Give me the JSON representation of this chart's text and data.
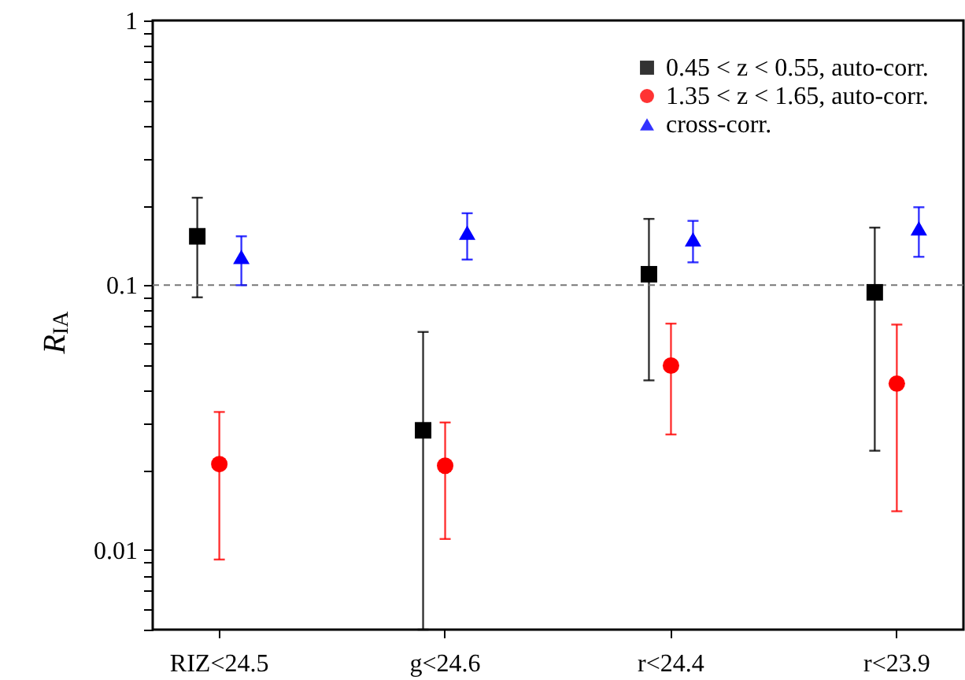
{
  "chart_data": {
    "type": "scatter",
    "ylabel": "R$_{IA}$",
    "log": "y",
    "categories": [
      "RIZ<24.5",
      "g<24.6",
      "r<24.4",
      "r<23.9"
    ],
    "ylim": [
      0.005,
      1
    ],
    "yticks": [
      {
        "value": 0.005,
        "label": null
      },
      {
        "value": 0.006,
        "label": null
      },
      {
        "value": 0.007,
        "label": null
      },
      {
        "value": 0.008,
        "label": null
      },
      {
        "value": 0.009,
        "label": null
      },
      0.01,
      {
        "value": 0.02,
        "label": null
      },
      {
        "value": 0.03,
        "label": null
      },
      {
        "value": 0.04,
        "label": null
      },
      {
        "value": 0.05,
        "label": null
      },
      {
        "value": 0.06,
        "label": null
      },
      {
        "value": 0.07,
        "label": null
      },
      {
        "value": 0.08,
        "label": null
      },
      {
        "value": 0.09,
        "label": null
      },
      0.1,
      {
        "value": 0.2,
        "label": null
      },
      {
        "value": 0.3,
        "label": null
      },
      {
        "value": 0.4,
        "label": null
      },
      {
        "value": 0.5,
        "label": null
      },
      {
        "value": 0.6,
        "label": null
      },
      {
        "value": 0.7,
        "label": null
      },
      {
        "value": 0.8,
        "label": null
      },
      {
        "value": 0.9,
        "label": null
      },
      1
    ],
    "series": [
      {
        "name": "0.45 < z < 0.55, auto-corr.",
        "color": "#000000",
        "marker": "square",
        "values": [
          0.153,
          0.0283,
          0.11,
          0.094
        ],
        "errors": [
          [
            0.09,
            0.214
          ],
          [
            0.005,
            0.0666
          ],
          [
            0.0437,
            0.178
          ],
          [
            0.0237,
            0.165
          ]
        ]
      },
      {
        "name": "1.35 < z < 1.65, auto-corr.",
        "color": "#ff0000",
        "marker": "circle",
        "values": [
          0.0211,
          0.0208,
          0.0497,
          0.0425
        ],
        "errors": [
          [
            0.0092,
            0.0332
          ],
          [
            0.011,
            0.0303
          ],
          [
            0.0273,
            0.0716
          ],
          [
            0.014,
            0.071
          ]
        ]
      },
      {
        "name": "cross-corr.",
        "color": "#0000ff",
        "marker": "triangle",
        "values": [
          0.128,
          0.158,
          0.149,
          0.164
        ],
        "errors": [
          [
            0.1,
            0.153
          ],
          [
            0.125,
            0.187
          ],
          [
            0.122,
            0.175
          ],
          [
            0.128,
            0.197
          ]
        ]
      }
    ],
    "ref_lines": [
      {
        "axis": "y",
        "value": 0.1,
        "color": "#777777",
        "line_style": "dashed"
      }
    ],
    "legend": "top right",
    "grid": false
  }
}
